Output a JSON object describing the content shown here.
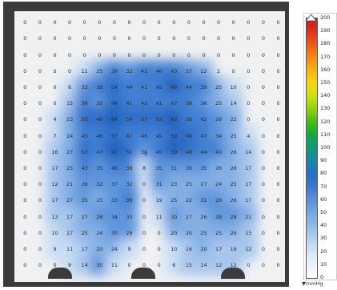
{
  "unit_label": "▼mmHg",
  "legend_ticks": [
    "200",
    "190",
    "180",
    "170",
    "160",
    "150",
    "140",
    "130",
    "120",
    "110",
    "100",
    "90",
    "80",
    "70",
    "60",
    "50",
    "40",
    "30",
    "20",
    "10",
    "0"
  ],
  "legend_colors": [
    "#cc1a1a",
    "#e0301a",
    "#ee5a18",
    "#f58a14",
    "#f8b212",
    "#f4d810",
    "#cce00e",
    "#8bd20e",
    "#3dbe0f",
    "#11a844",
    "#0e9a7c",
    "#1a86ae",
    "#2670c8",
    "#3b79d0",
    "#5791d8",
    "#76a7e1",
    "#93bce7",
    "#b4d1ef",
    "#d4e4f5",
    "#ecf2fa",
    "#ffffff"
  ],
  "pressure_grid": [
    [
      0,
      0,
      0,
      0,
      0,
      0,
      0,
      0,
      0,
      0,
      0,
      0,
      0,
      0,
      0,
      0,
      0,
      0
    ],
    [
      0,
      0,
      0,
      0,
      0,
      0,
      0,
      0,
      0,
      0,
      0,
      0,
      0,
      0,
      0,
      0,
      0,
      0
    ],
    [
      0,
      0,
      0,
      0,
      0,
      0,
      0,
      0,
      0,
      0,
      0,
      0,
      0,
      0,
      0,
      0,
      0,
      0
    ],
    [
      0,
      0,
      0,
      0,
      11,
      25,
      39,
      32,
      41,
      40,
      43,
      37,
      22,
      2,
      0,
      0,
      0,
      0
    ],
    [
      0,
      0,
      0,
      6,
      33,
      38,
      54,
      44,
      41,
      45,
      60,
      44,
      39,
      25,
      10,
      0,
      0,
      0
    ],
    [
      0,
      0,
      0,
      15,
      38,
      35,
      48,
      41,
      42,
      41,
      47,
      38,
      36,
      25,
      14,
      0,
      0,
      0
    ],
    [
      0,
      0,
      4,
      23,
      50,
      48,
      64,
      54,
      57,
      53,
      63,
      38,
      42,
      29,
      22,
      0,
      0,
      0
    ],
    [
      0,
      0,
      7,
      24,
      45,
      46,
      57,
      47,
      46,
      45,
      50,
      49,
      47,
      34,
      25,
      4,
      0,
      0
    ],
    [
      0,
      0,
      16,
      27,
      53,
      47,
      61,
      51,
      36,
      45,
      59,
      48,
      44,
      40,
      26,
      14,
      0,
      0
    ],
    [
      0,
      0,
      17,
      25,
      43,
      35,
      46,
      38,
      8,
      35,
      31,
      36,
      35,
      26,
      26,
      17,
      0,
      0
    ],
    [
      0,
      0,
      12,
      21,
      36,
      32,
      37,
      32,
      0,
      31,
      23,
      25,
      27,
      24,
      25,
      17,
      0,
      0
    ],
    [
      0,
      0,
      17,
      27,
      35,
      25,
      33,
      39,
      0,
      19,
      25,
      22,
      31,
      28,
      26,
      17,
      0,
      0
    ],
    [
      0,
      0,
      13,
      17,
      27,
      28,
      34,
      33,
      0,
      11,
      30,
      27,
      26,
      28,
      28,
      21,
      0,
      0
    ],
    [
      0,
      0,
      10,
      17,
      25,
      24,
      30,
      29,
      0,
      0,
      20,
      20,
      25,
      25,
      26,
      15,
      0,
      0
    ],
    [
      0,
      0,
      9,
      11,
      17,
      20,
      24,
      9,
      0,
      0,
      10,
      16,
      20,
      17,
      16,
      12,
      0,
      0
    ],
    [
      0,
      0,
      0,
      9,
      14,
      30,
      11,
      0,
      0,
      0,
      6,
      15,
      14,
      12,
      12,
      0,
      0,
      0
    ]
  ],
  "pressure_grid_visible_rows": 16,
  "cursor_marker": "s"
}
